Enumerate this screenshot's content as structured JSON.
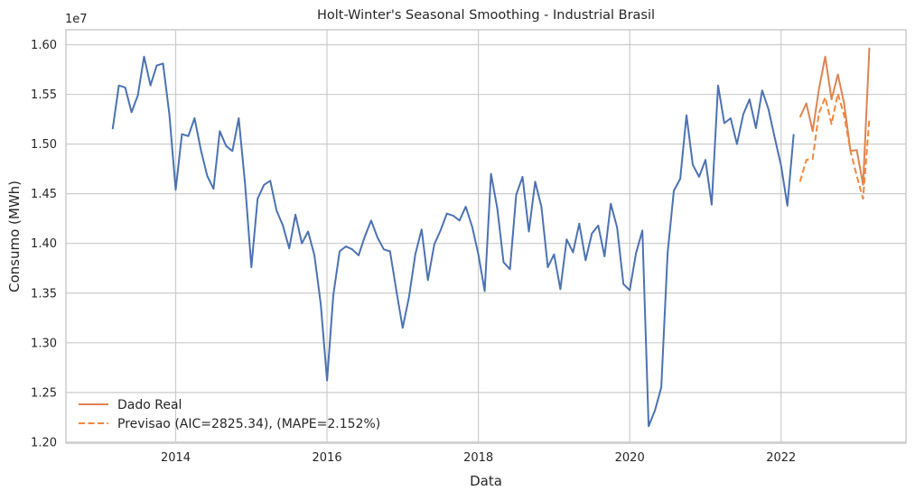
{
  "chart_data": {
    "type": "line",
    "title": "Holt-Winter's Seasonal Smoothing - Industrial Brasil",
    "xlabel": "Data",
    "ylabel": "Consumo (MWh)",
    "y_offset_label": "1e7",
    "xlim": [
      2012.55,
      2023.65
    ],
    "ylim": [
      11990000,
      16150000
    ],
    "x_ticks": [
      2014,
      2016,
      2018,
      2020,
      2022
    ],
    "x_tick_labels": [
      "2014",
      "2016",
      "2018",
      "2020",
      "2022"
    ],
    "y_ticks": [
      12000000,
      12500000,
      13000000,
      13500000,
      14000000,
      14500000,
      15000000,
      15500000,
      16000000
    ],
    "y_tick_labels": [
      "1.20",
      "1.25",
      "1.30",
      "1.35",
      "1.40",
      "1.45",
      "1.50",
      "1.55",
      "1.60"
    ],
    "grid": true,
    "legend_position": "bottom-left",
    "series": [
      {
        "name": "",
        "color": "#4c72b0",
        "style": "solid",
        "x": [
          2013.167,
          2013.25,
          2013.333,
          2013.417,
          2013.5,
          2013.583,
          2013.667,
          2013.75,
          2013.833,
          2013.917,
          2014.0,
          2014.083,
          2014.167,
          2014.25,
          2014.333,
          2014.417,
          2014.5,
          2014.583,
          2014.667,
          2014.75,
          2014.833,
          2014.917,
          2015.0,
          2015.083,
          2015.167,
          2015.25,
          2015.333,
          2015.417,
          2015.5,
          2015.583,
          2015.667,
          2015.75,
          2015.833,
          2015.917,
          2016.0,
          2016.083,
          2016.167,
          2016.25,
          2016.333,
          2016.417,
          2016.5,
          2016.583,
          2016.667,
          2016.75,
          2016.833,
          2016.917,
          2017.0,
          2017.083,
          2017.167,
          2017.25,
          2017.333,
          2017.417,
          2017.5,
          2017.583,
          2017.667,
          2017.75,
          2017.833,
          2017.917,
          2018.0,
          2018.083,
          2018.167,
          2018.25,
          2018.333,
          2018.417,
          2018.5,
          2018.583,
          2018.667,
          2018.75,
          2018.833,
          2018.917,
          2019.0,
          2019.083,
          2019.167,
          2019.25,
          2019.333,
          2019.417,
          2019.5,
          2019.583,
          2019.667,
          2019.75,
          2019.833,
          2019.917,
          2020.0,
          2020.083,
          2020.167,
          2020.25,
          2020.333,
          2020.417,
          2020.5,
          2020.583,
          2020.667,
          2020.75,
          2020.833,
          2020.917,
          2021.0,
          2021.083,
          2021.167,
          2021.25,
          2021.333,
          2021.417,
          2021.5,
          2021.583,
          2021.667,
          2021.75,
          2021.833,
          2021.917,
          2022.0,
          2022.083,
          2022.167
        ],
        "y": [
          15150000,
          15590000,
          15570000,
          15320000,
          15490000,
          15880000,
          15590000,
          15790000,
          15810000,
          15300000,
          14540000,
          15100000,
          15080000,
          15260000,
          14940000,
          14680000,
          14550000,
          15130000,
          14980000,
          14930000,
          15260000,
          14600000,
          13760000,
          14450000,
          14590000,
          14630000,
          14330000,
          14180000,
          13950000,
          14290000,
          14000000,
          14120000,
          13880000,
          13390000,
          12620000,
          13480000,
          13920000,
          13970000,
          13940000,
          13880000,
          14070000,
          14230000,
          14060000,
          13940000,
          13920000,
          13520000,
          13150000,
          13460000,
          13890000,
          14140000,
          13630000,
          13990000,
          14130000,
          14300000,
          14280000,
          14230000,
          14370000,
          14170000,
          13890000,
          13520000,
          14700000,
          14350000,
          13810000,
          13740000,
          14490000,
          14670000,
          14120000,
          14620000,
          14370000,
          13760000,
          13890000,
          13540000,
          14040000,
          13910000,
          14200000,
          13830000,
          14100000,
          14180000,
          13870000,
          14400000,
          14160000,
          13590000,
          13530000,
          13900000,
          14130000,
          12160000,
          12320000,
          12550000,
          13900000,
          14530000,
          14650000,
          15290000,
          14790000,
          14670000,
          14840000,
          14390000,
          15590000,
          15210000,
          15260000,
          15000000,
          15300000,
          15450000,
          15160000,
          15540000,
          15350000,
          15060000,
          14780000,
          14380000,
          15100000
        ]
      },
      {
        "name": "Dado Real",
        "color": "#dd8452",
        "style": "solid",
        "x": [
          2022.25,
          2022.333,
          2022.417,
          2022.5,
          2022.583,
          2022.667,
          2022.75,
          2022.833,
          2022.917,
          2023.0,
          2023.083,
          2023.167
        ],
        "y": [
          15270000,
          15410000,
          15130000,
          15550000,
          15880000,
          15450000,
          15700000,
          15410000,
          14930000,
          14940000,
          14590000,
          15970000
        ]
      },
      {
        "name": "Previsao (AIC=2825.34), (MAPE=2.152%)",
        "color": "#f0883e",
        "style": "dashed",
        "x": [
          2022.25,
          2022.333,
          2022.417,
          2022.5,
          2022.583,
          2022.667,
          2022.75,
          2022.833,
          2022.917,
          2023.0,
          2023.083,
          2023.167
        ],
        "y": [
          14620000,
          14840000,
          14850000,
          15310000,
          15470000,
          15200000,
          15510000,
          15290000,
          14930000,
          14680000,
          14450000,
          15260000
        ]
      }
    ],
    "legend": [
      {
        "label": "Dado Real",
        "color": "#dd8452",
        "style": "solid"
      },
      {
        "label": "Previsao (AIC=2825.34), (MAPE=2.152%)",
        "color": "#f0883e",
        "style": "dashed"
      }
    ]
  }
}
